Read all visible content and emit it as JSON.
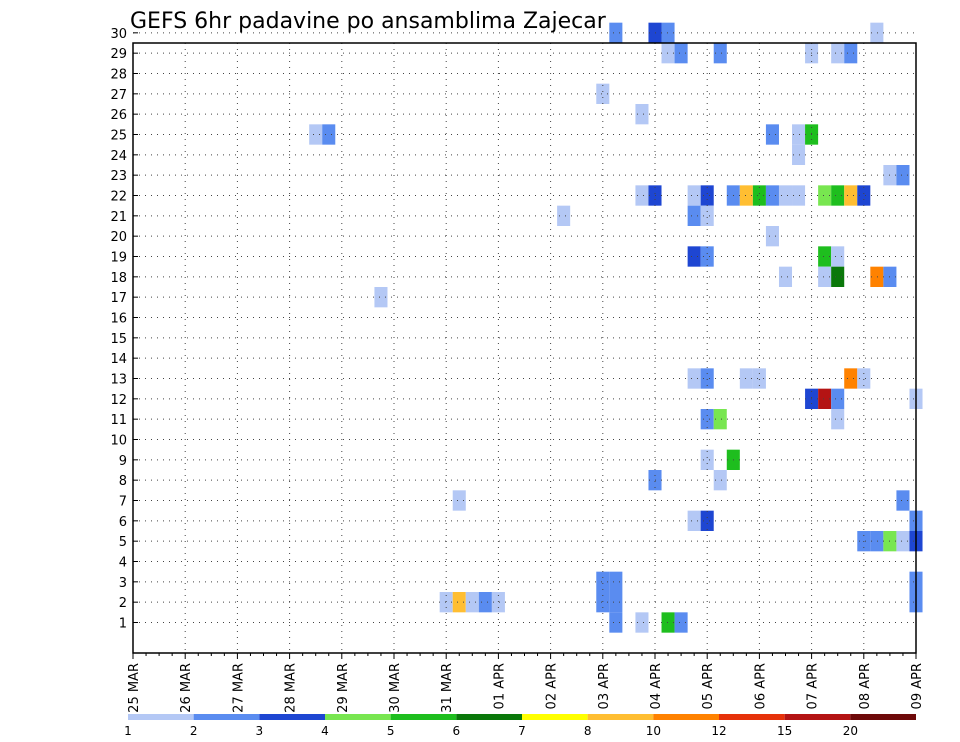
{
  "title": "GEFS 6hr padavine po ansamblima Zajecar",
  "chart_data": {
    "type": "heatmap",
    "title": "GEFS 6hr padavine po ansamblima Zajecar",
    "y_ticks": [
      "1",
      "2",
      "3",
      "4",
      "5",
      "6",
      "7",
      "8",
      "9",
      "10",
      "11",
      "12",
      "13",
      "14",
      "15",
      "16",
      "17",
      "18",
      "19",
      "20",
      "21",
      "22",
      "23",
      "24",
      "25",
      "26",
      "27",
      "28",
      "29",
      "30"
    ],
    "ylim": [
      0,
      30
    ],
    "x_ticks": [
      "25 MAR",
      "26 MAR",
      "27 MAR",
      "28 MAR",
      "29 MAR",
      "30 MAR",
      "31 MAR",
      "01 APR",
      "02 APR",
      "03 APR",
      "04 APR",
      "05 APR",
      "06 APR",
      "07 APR",
      "08 APR",
      "09 APR"
    ],
    "x_units": "days since 25 MAR (6-hour steps)",
    "grid": true,
    "colorbar": {
      "labels": [
        "1",
        "2",
        "3",
        "4",
        "5",
        "6",
        "7",
        "8",
        "10",
        "12",
        "15",
        "20"
      ],
      "colors": [
        "#b4c8f5",
        "#5a8cf0",
        "#1e46d2",
        "#78e650",
        "#1ebe1e",
        "#0a780a",
        "#ffff00",
        "#ffbe32",
        "#ff8200",
        "#e6320a",
        "#b41414",
        "#6e0a0a"
      ]
    },
    "cells": [
      {
        "x": 9.25,
        "y": 30,
        "v": 2
      },
      {
        "x": 10.0,
        "y": 30,
        "v": 3
      },
      {
        "x": 10.25,
        "y": 30,
        "v": 2
      },
      {
        "x": 14.25,
        "y": 30,
        "v": 1
      },
      {
        "x": 10.25,
        "y": 29,
        "v": 1
      },
      {
        "x": 10.5,
        "y": 29,
        "v": 2
      },
      {
        "x": 11.25,
        "y": 29,
        "v": 2
      },
      {
        "x": 13.0,
        "y": 29,
        "v": 1
      },
      {
        "x": 13.5,
        "y": 29,
        "v": 1
      },
      {
        "x": 13.75,
        "y": 29,
        "v": 2
      },
      {
        "x": 9.0,
        "y": 27,
        "v": 1
      },
      {
        "x": 9.75,
        "y": 26,
        "v": 1
      },
      {
        "x": 3.5,
        "y": 25,
        "v": 1
      },
      {
        "x": 3.75,
        "y": 25,
        "v": 2
      },
      {
        "x": 12.25,
        "y": 25,
        "v": 2
      },
      {
        "x": 12.75,
        "y": 25,
        "v": 1
      },
      {
        "x": 13.0,
        "y": 25,
        "v": 5
      },
      {
        "x": 12.75,
        "y": 24,
        "v": 1
      },
      {
        "x": 14.5,
        "y": 23,
        "v": 1
      },
      {
        "x": 14.75,
        "y": 23,
        "v": 2
      },
      {
        "x": 9.75,
        "y": 22,
        "v": 1
      },
      {
        "x": 10.0,
        "y": 22,
        "v": 3
      },
      {
        "x": 10.75,
        "y": 22,
        "v": 1
      },
      {
        "x": 11.0,
        "y": 22,
        "v": 3
      },
      {
        "x": 11.5,
        "y": 22,
        "v": 2
      },
      {
        "x": 11.75,
        "y": 22,
        "v": 8
      },
      {
        "x": 12.0,
        "y": 22,
        "v": 5
      },
      {
        "x": 12.25,
        "y": 22,
        "v": 2
      },
      {
        "x": 12.5,
        "y": 22,
        "v": 1
      },
      {
        "x": 12.75,
        "y": 22,
        "v": 1
      },
      {
        "x": 13.25,
        "y": 22,
        "v": 4
      },
      {
        "x": 13.5,
        "y": 22,
        "v": 5
      },
      {
        "x": 13.75,
        "y": 22,
        "v": 8
      },
      {
        "x": 14.0,
        "y": 22,
        "v": 3
      },
      {
        "x": 8.25,
        "y": 21,
        "v": 1
      },
      {
        "x": 10.75,
        "y": 21,
        "v": 2
      },
      {
        "x": 11.0,
        "y": 21,
        "v": 1
      },
      {
        "x": 12.25,
        "y": 20,
        "v": 1
      },
      {
        "x": 10.75,
        "y": 19,
        "v": 3
      },
      {
        "x": 11.0,
        "y": 19,
        "v": 2
      },
      {
        "x": 13.25,
        "y": 19,
        "v": 5
      },
      {
        "x": 13.5,
        "y": 19,
        "v": 1
      },
      {
        "x": 12.5,
        "y": 18,
        "v": 1
      },
      {
        "x": 13.25,
        "y": 18,
        "v": 1
      },
      {
        "x": 13.5,
        "y": 18,
        "v": 6
      },
      {
        "x": 14.25,
        "y": 18,
        "v": 10
      },
      {
        "x": 14.5,
        "y": 18,
        "v": 2
      },
      {
        "x": 4.75,
        "y": 17,
        "v": 1
      },
      {
        "x": 10.75,
        "y": 13,
        "v": 1
      },
      {
        "x": 11.0,
        "y": 13,
        "v": 2
      },
      {
        "x": 11.75,
        "y": 13,
        "v": 1
      },
      {
        "x": 12.0,
        "y": 13,
        "v": 1
      },
      {
        "x": 13.75,
        "y": 13,
        "v": 10
      },
      {
        "x": 14.0,
        "y": 13,
        "v": 1
      },
      {
        "x": 13.0,
        "y": 12,
        "v": 3
      },
      {
        "x": 13.25,
        "y": 12,
        "v": 15
      },
      {
        "x": 13.5,
        "y": 12,
        "v": 2
      },
      {
        "x": 15.0,
        "y": 12,
        "v": 1
      },
      {
        "x": 11.0,
        "y": 11,
        "v": 2
      },
      {
        "x": 11.25,
        "y": 11,
        "v": 4
      },
      {
        "x": 13.5,
        "y": 11,
        "v": 1
      },
      {
        "x": 11.5,
        "y": 9,
        "v": 5
      },
      {
        "x": 11.0,
        "y": 9,
        "v": 1
      },
      {
        "x": 10.0,
        "y": 8,
        "v": 2
      },
      {
        "x": 11.25,
        "y": 8,
        "v": 1
      },
      {
        "x": 6.25,
        "y": 7,
        "v": 1
      },
      {
        "x": 14.75,
        "y": 7,
        "v": 2
      },
      {
        "x": 10.75,
        "y": 6,
        "v": 1
      },
      {
        "x": 11.0,
        "y": 6,
        "v": 3
      },
      {
        "x": 15.0,
        "y": 6,
        "v": 2
      },
      {
        "x": 14.0,
        "y": 5,
        "v": 2
      },
      {
        "x": 14.25,
        "y": 5,
        "v": 2
      },
      {
        "x": 14.5,
        "y": 5,
        "v": 4
      },
      {
        "x": 14.75,
        "y": 5,
        "v": 1
      },
      {
        "x": 15.0,
        "y": 5,
        "v": 3
      },
      {
        "x": 9.0,
        "y": 3,
        "v": 2
      },
      {
        "x": 9.25,
        "y": 3,
        "v": 2
      },
      {
        "x": 9.0,
        "y": 2,
        "v": 2
      },
      {
        "x": 9.25,
        "y": 2,
        "v": 2
      },
      {
        "x": 15.0,
        "y": 3,
        "v": 2
      },
      {
        "x": 6.0,
        "y": 2,
        "v": 1
      },
      {
        "x": 6.25,
        "y": 2,
        "v": 8
      },
      {
        "x": 6.5,
        "y": 2,
        "v": 1
      },
      {
        "x": 6.75,
        "y": 2,
        "v": 2
      },
      {
        "x": 7.0,
        "y": 2,
        "v": 1
      },
      {
        "x": 15.0,
        "y": 2,
        "v": 2
      },
      {
        "x": 9.25,
        "y": 1,
        "v": 2
      },
      {
        "x": 9.75,
        "y": 1,
        "v": 1
      },
      {
        "x": 10.25,
        "y": 1,
        "v": 5
      },
      {
        "x": 10.5,
        "y": 1,
        "v": 2
      }
    ]
  }
}
